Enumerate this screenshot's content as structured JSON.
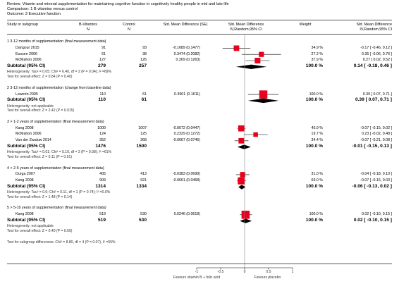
{
  "header": {
    "review": "Review:  Vitamin and mineral supplementation for maintaining cognitive function in cognitively healthy people in mid and late life",
    "comparison": "Comparison:  1 B vitamins versus control",
    "outcome": "Outcome:  3 Executive function"
  },
  "columns": {
    "study": "Study or subgroup",
    "exp_name": "B-Vitamins",
    "exp_n": "N",
    "ctl_name": "Control",
    "ctl_n": "N",
    "smd": "Std. Mean Difference (SE)",
    "plot_l1": "Std. Mean Difference",
    "plot_l2": "IV,Random,95% CI",
    "weight": "Weight",
    "res_l1": "Std. Mean Difference",
    "res_l2": "IV,Random,95% CI"
  },
  "chart_data": {
    "type": "forest",
    "xlim": [
      -1,
      1
    ],
    "ticks": [
      "-1",
      "-0.5",
      "0",
      "0.5",
      "1"
    ],
    "favours_left": "Favours vitamin B + folic acid",
    "favours_right": "Favours placebo",
    "groups": [
      {
        "title": "1 3-12 months of supplementation (final measurement data)",
        "studies": [
          {
            "name": "Dangour 2015",
            "n1": "91",
            "n2": "93",
            "smd": "-0.1689 (0.1477)",
            "weight": "34.9 %",
            "ci": "-0.17 [ -0.46, 0.12 ]",
            "est": -0.17,
            "lo": -0.46,
            "hi": 0.12,
            "w": 34.9
          },
          {
            "name": "Eussen 2006",
            "n1": "61",
            "n2": "38",
            "smd": "0.3474 (0.2082)",
            "weight": "27.2 %",
            "ci": "0.35 [ -0.06, 0.76 ]",
            "est": 0.35,
            "lo": -0.06,
            "hi": 0.76,
            "w": 27.2
          },
          {
            "name": "McMahon 2006",
            "n1": "127",
            "n2": "126",
            "smd": "0.269 (0.1263)",
            "weight": "37.9 %",
            "ci": "0.27 [ 0.02, 0.52 ]",
            "est": 0.27,
            "lo": 0.02,
            "hi": 0.52,
            "w": 37.9
          }
        ],
        "subtotal": {
          "label": "Subtotal (95% CI)",
          "n1": "279",
          "n2": "257",
          "weight": "100.0 %",
          "ci": "0.14 [ -0.18, 0.46 ]",
          "est": 0.14,
          "lo": -0.18,
          "hi": 0.46
        },
        "het": "Heterogeneity: Tau² = 0.05; Chi² = 6.40, df = 2 (P = 0.04); I² =69%",
        "test": "Test for overall effect: Z = 0.84 (P = 0.40)"
      },
      {
        "title": "2 3-12 months of supplementation (change from baseline data)",
        "studies": [
          {
            "name": "Lewerin 2005",
            "n1": "110",
            "n2": "61",
            "smd": "0.3901 (0.1611)",
            "weight": "100.0 %",
            "ci": "0.39 [ 0.07, 0.71 ]",
            "est": 0.39,
            "lo": 0.07,
            "hi": 0.71,
            "w": 100.0
          }
        ],
        "subtotal": {
          "label": "Subtotal (95% CI)",
          "n1": "110",
          "n2": "61",
          "weight": "100.0 %",
          "ci": "0.39 [ 0.07, 0.71 ]",
          "est": 0.39,
          "lo": 0.07,
          "hi": 0.71
        },
        "het": "Heterogeneity: not applicable",
        "test": "Test for overall effect: Z = 2.42 (P = 0.015)"
      },
      {
        "title": "3 > 1-2 years of supplementation (final measurement data)",
        "studies": [
          {
            "name": "Kang 2008",
            "n1": "1000",
            "n2": "1007",
            "smd": "-0.0672 (0.0447)",
            "weight": "45.9 %",
            "ci": "-0.07 [ -0.15, 0.02 ]",
            "est": -0.07,
            "lo": -0.15,
            "hi": 0.02,
            "w": 45.9
          },
          {
            "name": "McMahon 2006",
            "n1": "124",
            "n2": "125",
            "smd": "0.2329 (0.1272)",
            "weight": "19.7 %",
            "ci": "0.23 [ -0.02, 0.48 ]",
            "est": 0.23,
            "lo": -0.02,
            "hi": 0.48,
            "w": 19.7
          },
          {
            "name": "Van der Zwaluw 2014",
            "n1": "352",
            "n2": "368",
            "smd": "-0.0667 (0.0746)",
            "weight": "34.4 %",
            "ci": "-0.07 [ -0.21, 0.08 ]",
            "est": -0.07,
            "lo": -0.21,
            "hi": 0.08,
            "w": 34.4
          }
        ],
        "subtotal": {
          "label": "Subtotal (95% CI)",
          "n1": "1476",
          "n2": "1500",
          "weight": "100.0 %",
          "ci": "-0.01 [ -0.15, 0.13 ]",
          "est": -0.01,
          "lo": -0.15,
          "hi": 0.13
        },
        "het": "Heterogeneity: Tau² = 0.01; Chi² = 5.10, df = 2 (P = 0.08); I² =61%",
        "test": "Test for overall effect: Z = 0.11 (P = 0.91)"
      },
      {
        "title": "4 > 2-5 years of supplementation (final measurement data)",
        "studies": [
          {
            "name": "Durga 2007",
            "n1": "405",
            "n2": "413",
            "smd": "-0.0383 (0.0699)",
            "weight": "31.0 %",
            "ci": "-0.04 [ -0.18, 0.10 ]",
            "est": -0.04,
            "lo": -0.18,
            "hi": 0.1,
            "w": 31.0
          },
          {
            "name": "Kang 2008",
            "n1": "909",
            "n2": "921",
            "smd": "-0.0661 (0.0468)",
            "weight": "69.0 %",
            "ci": "-0.07 [ -0.16, 0.03 ]",
            "est": -0.07,
            "lo": -0.16,
            "hi": 0.03,
            "w": 69.0
          }
        ],
        "subtotal": {
          "label": "Subtotal (95% CI)",
          "n1": "1314",
          "n2": "1334",
          "weight": "100.0 %",
          "ci": "-0.06 [ -0.13, 0.02 ]",
          "est": -0.06,
          "lo": -0.13,
          "hi": 0.02
        },
        "het": "Heterogeneity: Tau² = 0.0; Chi² = 0.11, df = 1 (P = 0.74); I² =0.0%",
        "test": "Test for overall effect: Z = 1.48 (P = 0.14)"
      },
      {
        "title": "5 > 5-10 years of supplementation (final measurement data)",
        "studies": [
          {
            "name": "Kang 2008",
            "n1": "519",
            "n2": "530",
            "smd": "0.0246 (0.0618)",
            "weight": "100.0 %",
            "ci": "0.02 [ -0.10, 0.15 ]",
            "est": 0.02,
            "lo": -0.1,
            "hi": 0.15,
            "w": 100.0
          }
        ],
        "subtotal": {
          "label": "Subtotal (95% CI)",
          "n1": "519",
          "n2": "530",
          "weight": "100.0 %",
          "ci": "0.02 [ -0.10, 0.15 ]",
          "est": 0.02,
          "lo": -0.1,
          "hi": 0.15
        },
        "het": "Heterogeneity: not applicable",
        "test": "Test for overall effect: Z = 0.40 (P = 0.69)"
      }
    ],
    "subgroup_test": "Test for subgroup differences: Chi² = 8.80, df = 4 (P = 0.07), I² =55%"
  }
}
